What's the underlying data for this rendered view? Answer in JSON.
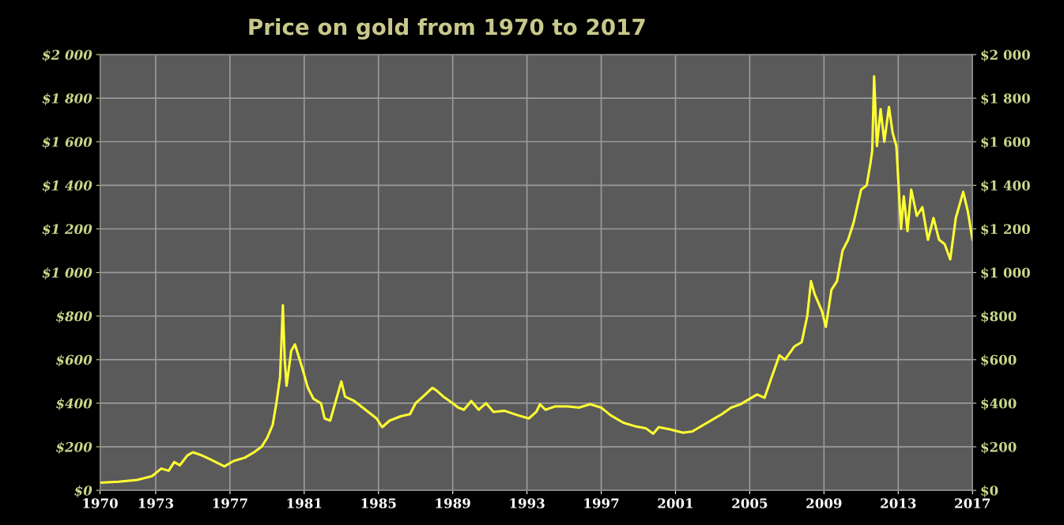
{
  "chart_data": {
    "type": "line",
    "title": "Price on gold from 1970 to 2017",
    "x": [
      1970.0,
      1971.0,
      1972.0,
      1972.8,
      1973.3,
      1973.7,
      1974.0,
      1974.3,
      1974.7,
      1975.0,
      1975.5,
      1976.0,
      1976.7,
      1977.2,
      1977.8,
      1978.3,
      1978.7,
      1979.0,
      1979.3,
      1979.5,
      1979.7,
      1979.85,
      1979.95,
      1980.05,
      1980.3,
      1980.5,
      1980.9,
      1981.2,
      1981.5,
      1981.9,
      1982.1,
      1982.4,
      1982.8,
      1983.0,
      1983.2,
      1983.7,
      1984.3,
      1984.9,
      1985.2,
      1985.6,
      1986.2,
      1986.7,
      1987.0,
      1987.4,
      1987.9,
      1988.1,
      1988.5,
      1989.0,
      1989.3,
      1989.6,
      1990.0,
      1990.4,
      1990.8,
      1991.2,
      1991.8,
      1992.5,
      1993.1,
      1993.5,
      1993.7,
      1994.0,
      1994.5,
      1995.2,
      1995.8,
      1996.4,
      1997.0,
      1997.5,
      1998.2,
      1998.8,
      1999.4,
      1999.8,
      2000.1,
      2000.7,
      2001.4,
      2001.9,
      2002.5,
      2003.0,
      2003.5,
      2004.0,
      2004.5,
      2005.0,
      2005.4,
      2005.8,
      2006.1,
      2006.6,
      2006.9,
      2007.4,
      2007.8,
      2008.1,
      2008.3,
      2008.5,
      2008.9,
      2009.1,
      2009.4,
      2009.7,
      2010.0,
      2010.3,
      2010.6,
      2011.0,
      2011.3,
      2011.5,
      2011.6,
      2011.7,
      2011.85,
      2012.05,
      2012.25,
      2012.5,
      2012.7,
      2012.9,
      2013.15,
      2013.3,
      2013.5,
      2013.7,
      2014.0,
      2014.3,
      2014.6,
      2014.9,
      2015.2,
      2015.5,
      2015.8,
      2016.1,
      2016.5,
      2016.75,
      2017.0
    ],
    "series": [
      {
        "color": "#ffff33",
        "values": [
          35,
          40,
          48,
          65,
          100,
          90,
          130,
          115,
          160,
          175,
          160,
          140,
          110,
          135,
          150,
          175,
          200,
          240,
          300,
          400,
          520,
          850,
          600,
          480,
          640,
          670,
          560,
          470,
          420,
          400,
          330,
          320,
          440,
          500,
          430,
          410,
          370,
          330,
          290,
          320,
          340,
          350,
          400,
          430,
          470,
          460,
          430,
          400,
          380,
          370,
          410,
          370,
          400,
          360,
          365,
          345,
          330,
          360,
          395,
          370,
          385,
          385,
          380,
          395,
          380,
          345,
          310,
          295,
          285,
          260,
          290,
          280,
          265,
          270,
          300,
          325,
          350,
          380,
          395,
          420,
          440,
          425,
          500,
          620,
          600,
          660,
          680,
          800,
          960,
          900,
          820,
          750,
          920,
          960,
          1100,
          1150,
          1230,
          1380,
          1400,
          1500,
          1560,
          1900,
          1580,
          1750,
          1600,
          1760,
          1640,
          1580,
          1200,
          1350,
          1190,
          1380,
          1260,
          1300,
          1150,
          1250,
          1150,
          1130,
          1060,
          1250,
          1370,
          1280,
          1150
        ]
      }
    ],
    "xlim": [
      1970,
      2017
    ],
    "xticks": [
      1970,
      1973,
      1977,
      1981,
      1985,
      1989,
      1993,
      1997,
      2001,
      2005,
      2009,
      2013,
      2017
    ],
    "ylim": [
      0,
      2000
    ],
    "yticks": [
      {
        "value": 0,
        "label": "$0"
      },
      {
        "value": 200,
        "label": "$200"
      },
      {
        "value": 400,
        "label": "$400"
      },
      {
        "value": 600,
        "label": "$600"
      },
      {
        "value": 800,
        "label": "$800"
      },
      {
        "value": 1000,
        "label": "$1 000"
      },
      {
        "value": 1200,
        "label": "$1 200"
      },
      {
        "value": 1400,
        "label": "$1 400"
      },
      {
        "value": 1600,
        "label": "$1 600"
      },
      {
        "value": 1800,
        "label": "$1 800"
      },
      {
        "value": 2000,
        "label": "$2 000"
      }
    ],
    "y2lim": [
      0,
      2000
    ],
    "y2ticks": [
      {
        "value": 0,
        "label": "$0"
      },
      {
        "value": 200,
        "label": "$200"
      },
      {
        "value": 400,
        "label": "$400"
      },
      {
        "value": 600,
        "label": "$600"
      },
      {
        "value": 800,
        "label": "$800"
      },
      {
        "value": 1000,
        "label": "$1 000"
      },
      {
        "value": 1200,
        "label": "$1 200"
      },
      {
        "value": 1400,
        "label": "$1 400"
      },
      {
        "value": 1600,
        "label": "$1 600"
      },
      {
        "value": 1800,
        "label": "$1 800"
      },
      {
        "value": 2000,
        "label": "$2 000"
      }
    ],
    "grid": true
  }
}
